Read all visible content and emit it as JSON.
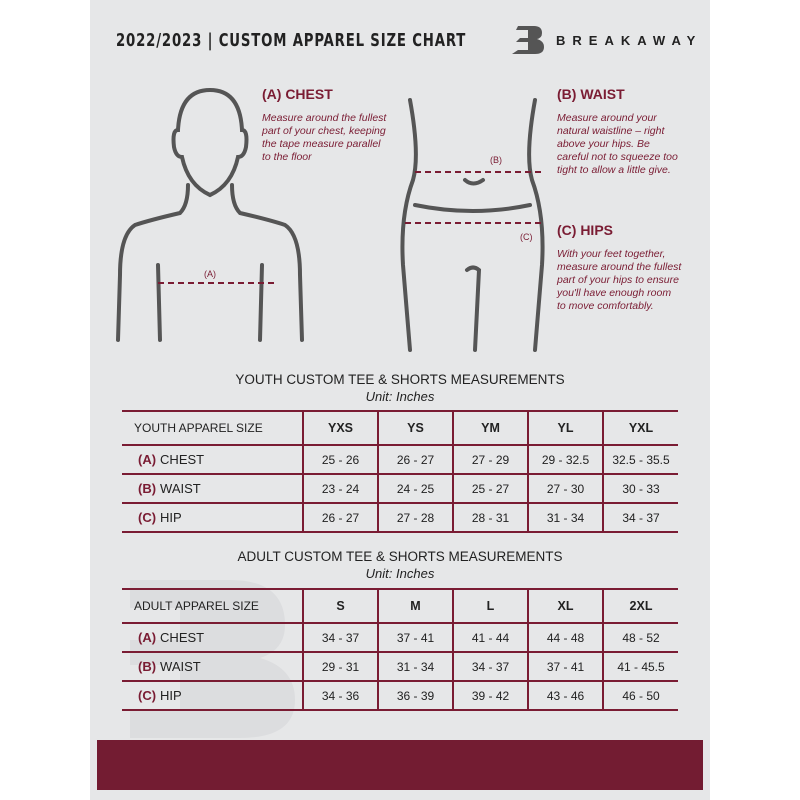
{
  "header": {
    "title": "2022/2023  |  CUSTOM APPAREL SIZE CHART",
    "brand": "BREAKAWAY"
  },
  "guide": {
    "chest": {
      "label": "(A)",
      "heading": "(A) CHEST",
      "text": "Measure around the fullest part of your chest, keeping the tape measure parallel to the floor"
    },
    "waist": {
      "label": "(B)",
      "heading": "(B) WAIST",
      "text": "Measure around your natural waistline – right above your hips. Be careful not to squeeze too tight to allow a little give."
    },
    "hips": {
      "label": "(C)",
      "heading": "(C) HIPS",
      "text": "With your feet together, measure around the fullest part of your hips to ensure you'll have enough room to move comfortably."
    }
  },
  "youth": {
    "title": "YOUTH CUSTOM TEE & SHORTS MEASUREMENTS",
    "unit": "Unit: Inches",
    "size_header": "YOUTH APPAREL SIZE",
    "sizes": [
      "YXS",
      "YS",
      "YM",
      "YL",
      "YXL"
    ],
    "rows": [
      {
        "tag": "(A)",
        "label": "CHEST",
        "values": [
          "25 - 26",
          "26 - 27",
          "27 - 29",
          "29 - 32.5",
          "32.5 - 35.5"
        ]
      },
      {
        "tag": "(B)",
        "label": "WAIST",
        "values": [
          "23 - 24",
          "24 - 25",
          "25 - 27",
          "27 - 30",
          "30 - 33"
        ]
      },
      {
        "tag": "(C)",
        "label": "HIP",
        "values": [
          "26 - 27",
          "27 - 28",
          "28 - 31",
          "31 - 34",
          "34 - 37"
        ]
      }
    ]
  },
  "adult": {
    "title": "ADULT CUSTOM TEE & SHORTS MEASUREMENTS",
    "unit": "Unit: Inches",
    "size_header": "ADULT APPAREL SIZE",
    "sizes": [
      "S",
      "M",
      "L",
      "XL",
      "2XL"
    ],
    "rows": [
      {
        "tag": "(A)",
        "label": "CHEST",
        "values": [
          "34 - 37",
          "37 - 41",
          "41 - 44",
          "44 - 48",
          "48 - 52"
        ]
      },
      {
        "tag": "(B)",
        "label": "WAIST",
        "values": [
          "29 - 31",
          "31 - 34",
          "34 - 37",
          "37 - 41",
          "41 - 45.5"
        ]
      },
      {
        "tag": "(C)",
        "label": "HIP",
        "values": [
          "34 - 36",
          "36 - 39",
          "39 - 42",
          "43 - 46",
          "46 - 50"
        ]
      }
    ]
  },
  "colors": {
    "accent": "#7a1c33",
    "panel": "#e6e7e8",
    "footer": "#731c32"
  }
}
